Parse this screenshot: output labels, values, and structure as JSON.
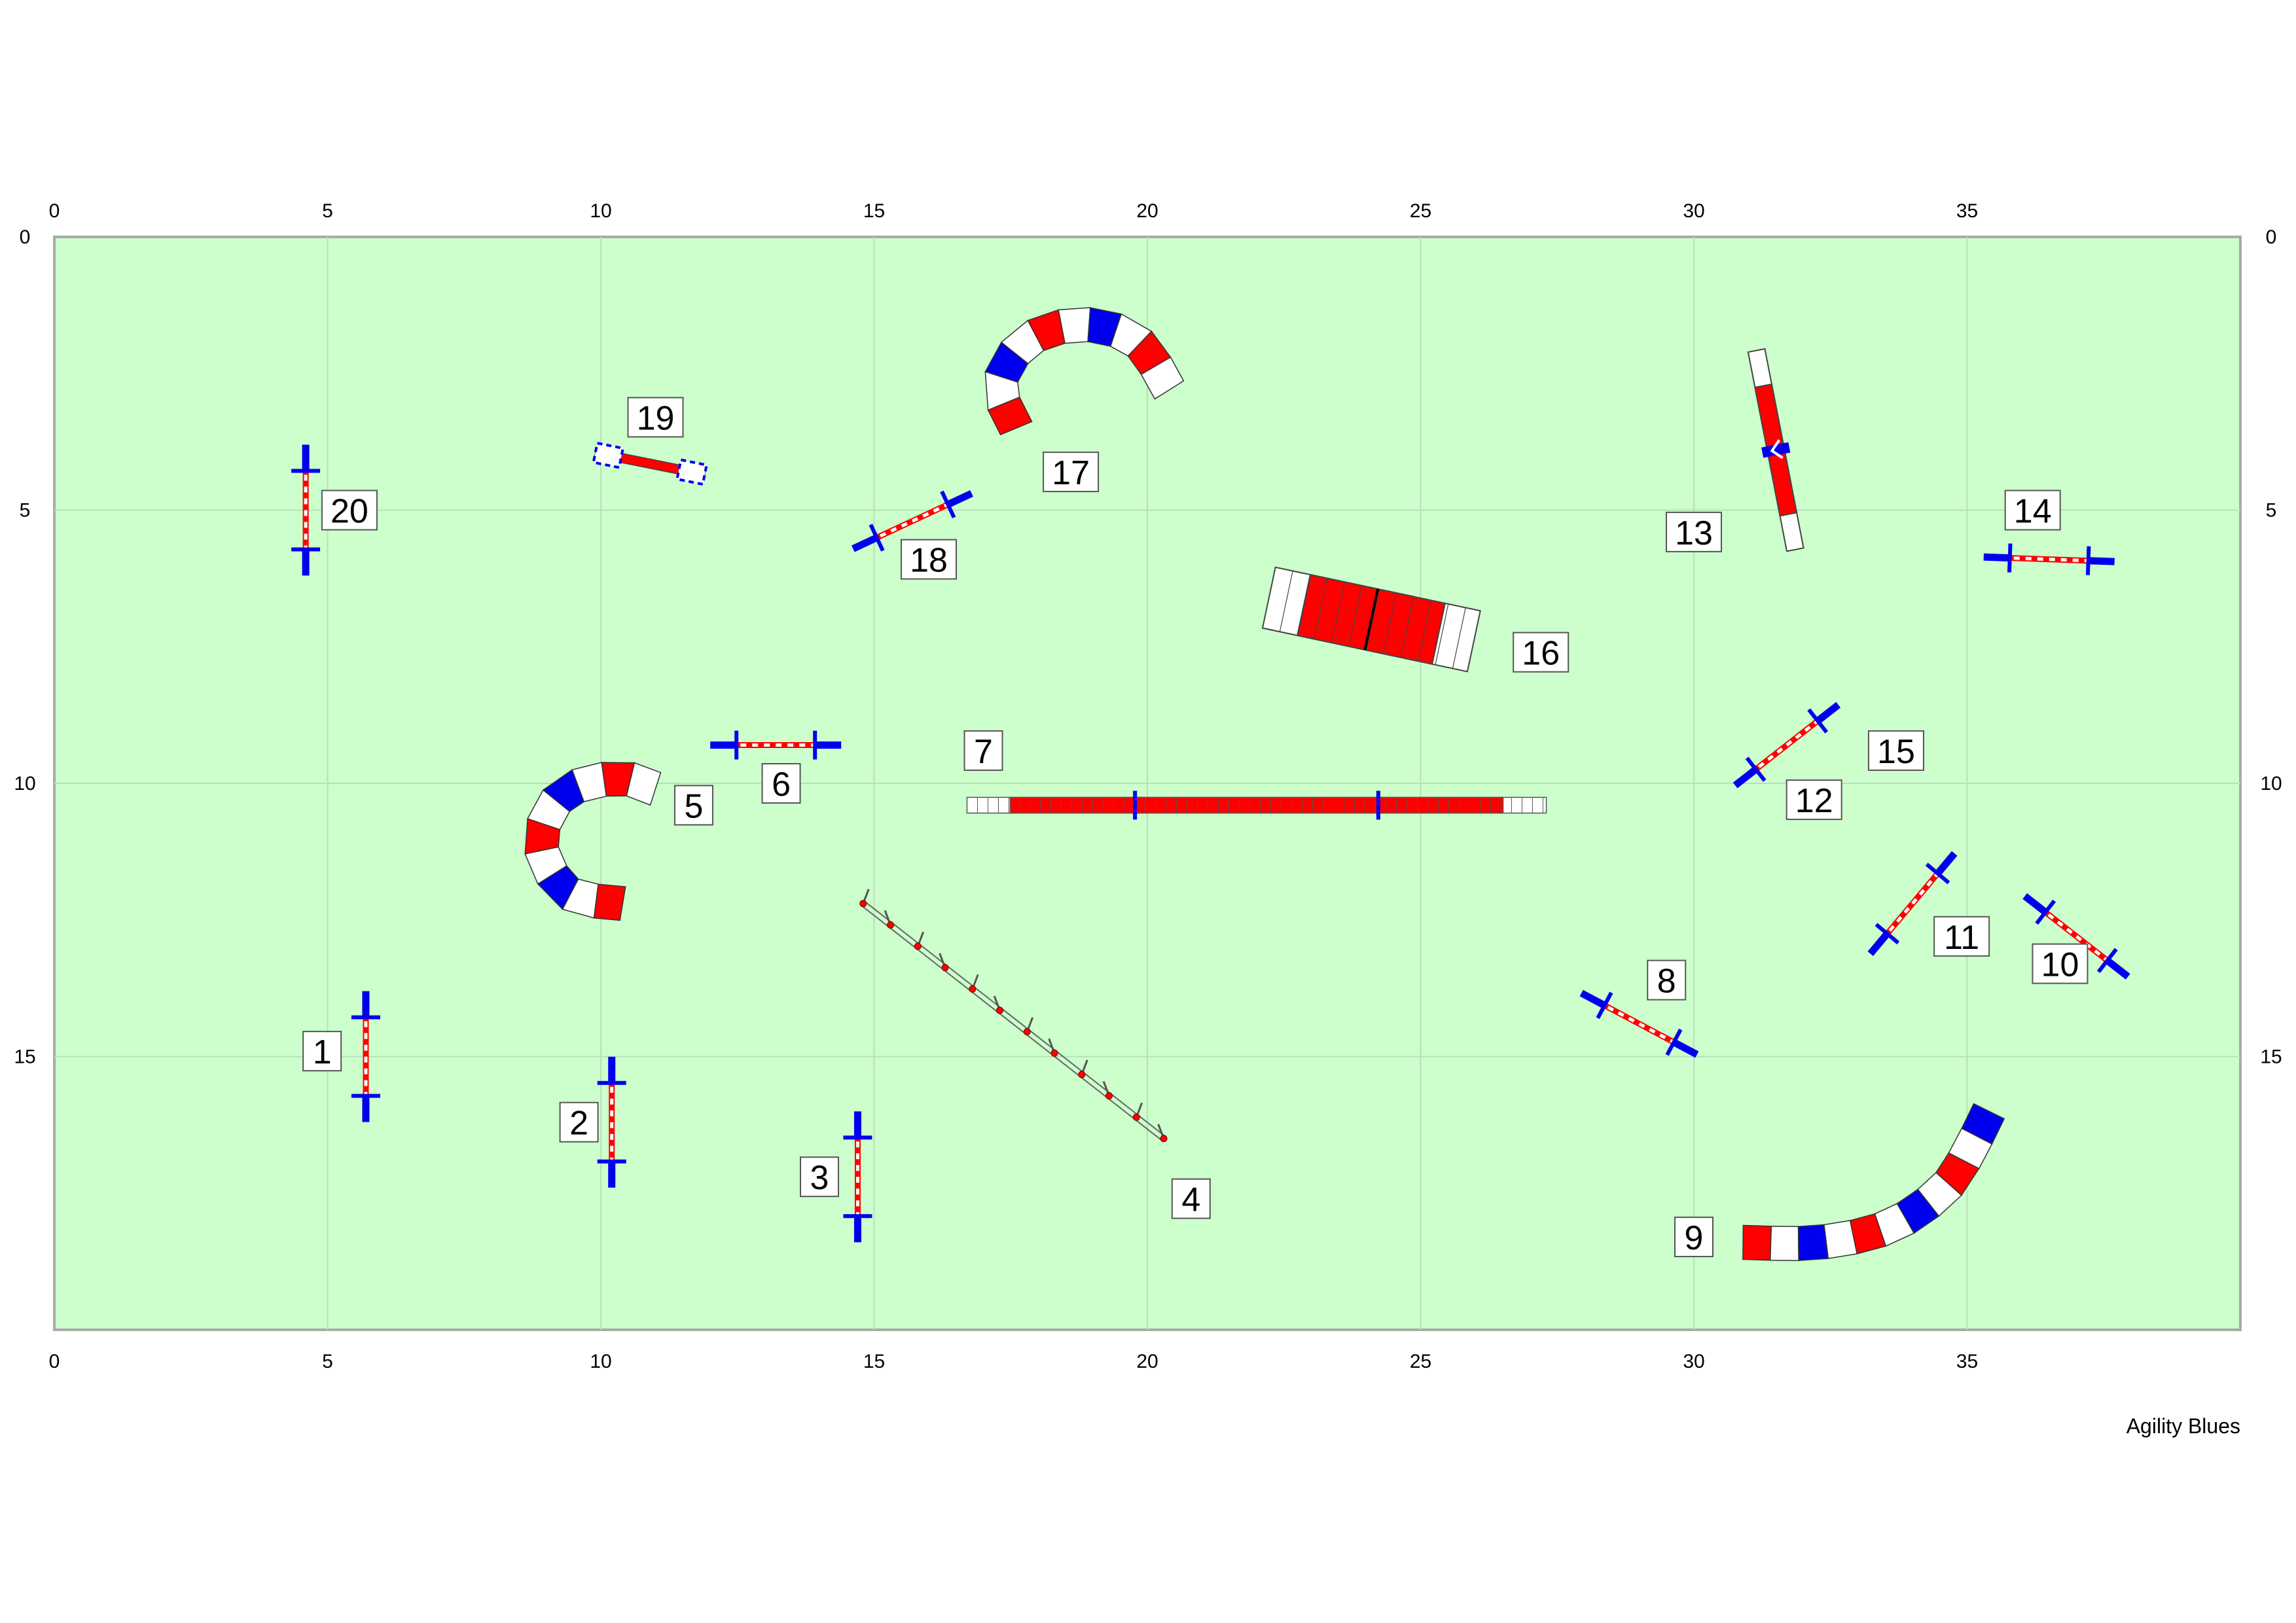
{
  "course": {
    "width": 40,
    "height": 20,
    "x_ticks": [
      0,
      5,
      10,
      15,
      20,
      25,
      30,
      35
    ],
    "y_ticks": [
      0,
      5,
      10,
      15
    ],
    "field_color": "#ccffcc",
    "credit": "Agility Blues"
  },
  "colors": {
    "red": "#ff0000",
    "blue": "#0000ee",
    "white": "#ffffff"
  },
  "jumps": [
    {
      "id": "jump-1",
      "x": 5.7,
      "y": 15.0,
      "angle": 90
    },
    {
      "id": "jump-2",
      "x": 10.2,
      "y": 16.2,
      "angle": 90
    },
    {
      "id": "jump-3",
      "x": 14.7,
      "y": 17.2,
      "angle": 90
    },
    {
      "id": "jump-6",
      "x": 13.2,
      "y": 9.3,
      "angle": 0
    },
    {
      "id": "jump-8",
      "x": 29.0,
      "y": 14.4,
      "angle": 28
    },
    {
      "id": "jump-10",
      "x": 37.0,
      "y": 12.8,
      "angle": 38
    },
    {
      "id": "jump-11",
      "x": 34.0,
      "y": 12.2,
      "angle": -50
    },
    {
      "id": "jump-12",
      "x": 31.7,
      "y": 9.3,
      "angle": -38
    },
    {
      "id": "jump-14",
      "x": 36.5,
      "y": 5.9,
      "angle": 2
    },
    {
      "id": "jump-18",
      "x": 15.7,
      "y": 5.2,
      "angle": -25
    },
    {
      "id": "jump-20",
      "x": 4.6,
      "y": 5.0,
      "angle": 90
    }
  ],
  "tunnels": [
    {
      "id": "tunnel-5",
      "path": [
        [
          10.4,
          12.2
        ],
        [
          9.4,
          12.0
        ],
        [
          8.9,
          11.1
        ],
        [
          9.3,
          10.2
        ],
        [
          10.3,
          9.9
        ],
        [
          11.0,
          10.1
        ]
      ]
    },
    {
      "id": "tunnel-17",
      "path": [
        [
          17.6,
          3.5
        ],
        [
          17.3,
          2.7
        ],
        [
          17.8,
          1.9
        ],
        [
          18.8,
          1.6
        ],
        [
          19.8,
          1.9
        ],
        [
          20.4,
          2.8
        ]
      ]
    },
    {
      "id": "tunnel-9",
      "path": [
        [
          30.9,
          18.4
        ],
        [
          32.3,
          18.4
        ],
        [
          33.6,
          18.1
        ],
        [
          34.6,
          17.4
        ],
        [
          35.1,
          16.6
        ],
        [
          35.4,
          16.0
        ]
      ]
    }
  ],
  "dogwalk": {
    "id": "dogwalk-7",
    "x1": 16.7,
    "x2": 27.3,
    "y": 10.4
  },
  "aframe": {
    "id": "aframe-16",
    "cx": 24.1,
    "cy": 7.0,
    "angle": 12
  },
  "seesaw": {
    "id": "seesaw-13",
    "cx": 31.5,
    "cy": 3.9,
    "angle": 79
  },
  "table": {
    "id": "table-19",
    "x1": 9.9,
    "y1": 3.95,
    "x2": 11.9,
    "y2": 4.35
  },
  "weaves": {
    "id": "weaves-4",
    "x1": 14.8,
    "y1": 12.2,
    "x2": 20.3,
    "y2": 16.5,
    "poles": 12
  },
  "numbers": [
    {
      "n": "1",
      "x": 4.9,
      "y": 14.9
    },
    {
      "n": "2",
      "x": 9.6,
      "y": 16.2
    },
    {
      "n": "3",
      "x": 14.0,
      "y": 17.2
    },
    {
      "n": "4",
      "x": 20.8,
      "y": 17.6
    },
    {
      "n": "5",
      "x": 11.7,
      "y": 10.4
    },
    {
      "n": "6",
      "x": 13.3,
      "y": 10.0
    },
    {
      "n": "7",
      "x": 17.0,
      "y": 9.4
    },
    {
      "n": "8",
      "x": 29.5,
      "y": 13.6
    },
    {
      "n": "9",
      "x": 30.0,
      "y": 18.3
    },
    {
      "n": "10",
      "x": 36.7,
      "y": 13.3
    },
    {
      "n": "11",
      "x": 34.9,
      "y": 12.8
    },
    {
      "n": "12",
      "x": 32.2,
      "y": 10.3
    },
    {
      "n": "13",
      "x": 30.0,
      "y": 5.4
    },
    {
      "n": "14",
      "x": 36.2,
      "y": 5.0
    },
    {
      "n": "15",
      "x": 33.7,
      "y": 9.4
    },
    {
      "n": "16",
      "x": 27.2,
      "y": 7.6
    },
    {
      "n": "17",
      "x": 18.6,
      "y": 4.3
    },
    {
      "n": "18",
      "x": 16.0,
      "y": 5.9
    },
    {
      "n": "19",
      "x": 11.0,
      "y": 3.3
    },
    {
      "n": "20",
      "x": 5.4,
      "y": 5.0
    }
  ]
}
